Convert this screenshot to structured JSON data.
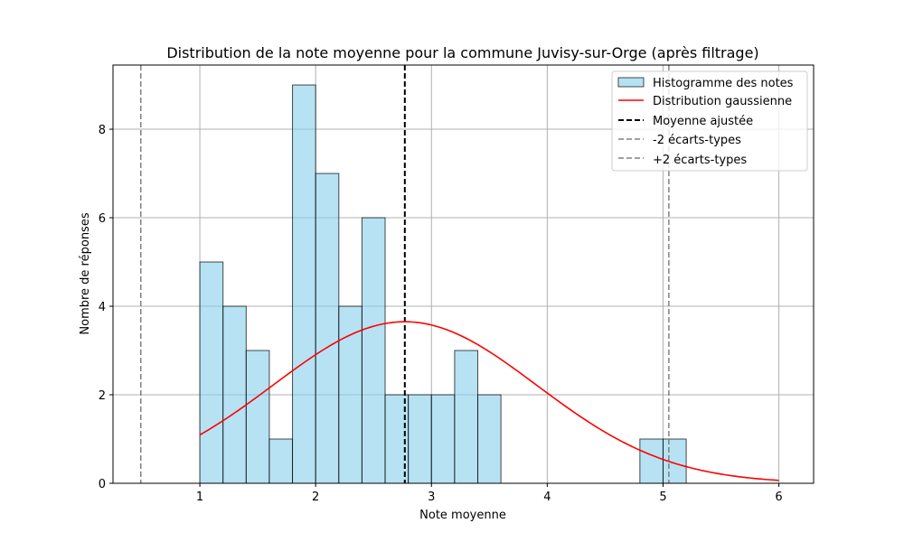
{
  "chart_data": {
    "type": "bar",
    "title": "Distribution de la note moyenne pour la commune Juvisy-sur-Orge (après filtrage)",
    "xlabel": "Note moyenne",
    "ylabel": "Nombre de réponses",
    "xlim": [
      0.25,
      6.3
    ],
    "ylim": [
      0,
      9.45
    ],
    "xticks": [
      1,
      2,
      3,
      4,
      5,
      6
    ],
    "yticks": [
      0,
      2,
      4,
      6,
      8
    ],
    "grid": true,
    "legend_position": "top-right",
    "histogram": {
      "name": "Histogramme des notes",
      "bin_edges": [
        1.0,
        1.2,
        1.4,
        1.6,
        1.8,
        2.0,
        2.2,
        2.4,
        2.6,
        2.8,
        3.0,
        3.2,
        3.4,
        3.6,
        3.8,
        4.0,
        4.2,
        4.4,
        4.6,
        4.8,
        5.0,
        5.2
      ],
      "counts": [
        5,
        4,
        3,
        1,
        9,
        7,
        4,
        6,
        2,
        2,
        2,
        3,
        2,
        0,
        0,
        0,
        0,
        0,
        0,
        1,
        1
      ],
      "color": "#87ceeb"
    },
    "gaussian": {
      "name": "Distribution gaussienne",
      "mean": 2.77,
      "sd": 1.14,
      "peak": 3.65,
      "x_range": [
        1,
        6
      ],
      "color": "#ff0000"
    },
    "vlines": [
      {
        "name": "Moyenne ajustée",
        "x": 2.77,
        "color": "#000000"
      },
      {
        "name": "-2 écarts-types",
        "x": 0.49,
        "color": "#808080"
      },
      {
        "name": "+2 écarts-types",
        "x": 5.05,
        "color": "#808080"
      }
    ]
  }
}
